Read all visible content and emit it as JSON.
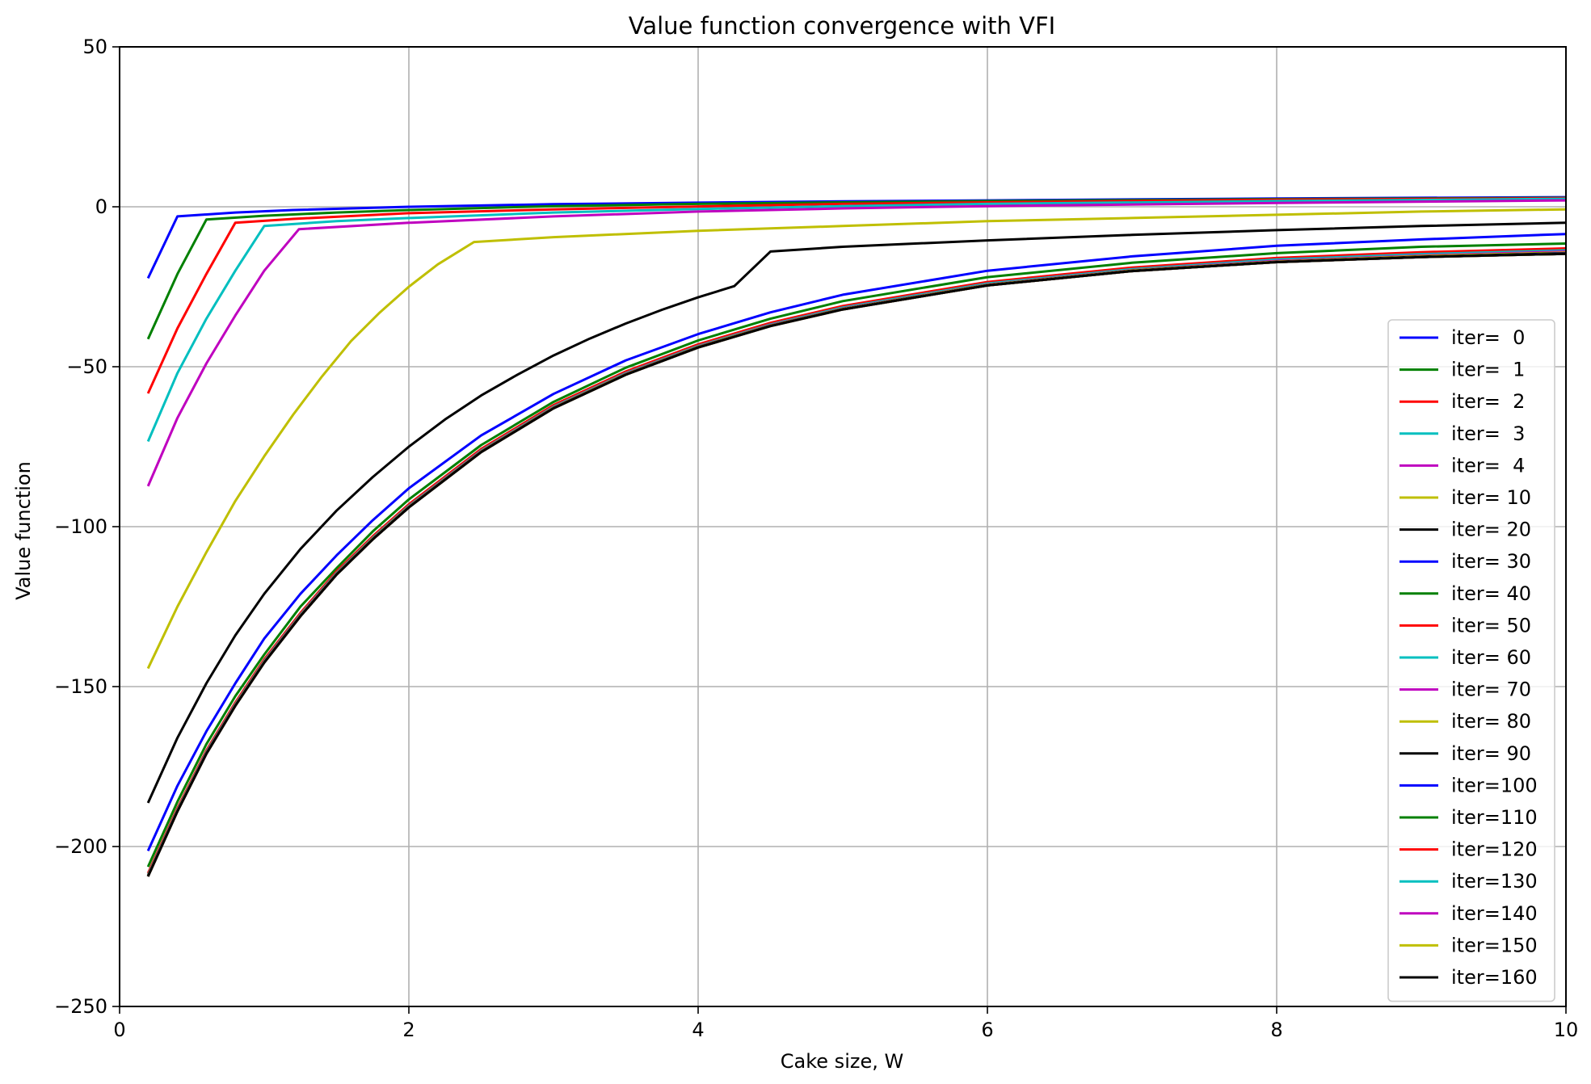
{
  "chart_data": {
    "type": "line",
    "title": "Value function convergence with VFI",
    "xlabel": "Cake size, W",
    "ylabel": "Value function",
    "xlim": [
      0,
      10
    ],
    "ylim": [
      -250,
      50
    ],
    "x_ticks": [
      0,
      2,
      4,
      6,
      8,
      10
    ],
    "x_tick_labels": [
      "0",
      "2",
      "4",
      "6",
      "8",
      "10"
    ],
    "y_ticks": [
      50,
      0,
      -50,
      -100,
      -150,
      -200,
      -250
    ],
    "y_tick_labels": [
      "50",
      "0",
      "−50",
      "−100",
      "−150",
      "−200",
      "−250"
    ],
    "grid": true,
    "legend_position": "lower-right",
    "series": [
      {
        "name": "iter=  0",
        "color": "#0000ff",
        "x": [
          0.2,
          0.4,
          0.8,
          1.2,
          2,
          3,
          4,
          5,
          6,
          8,
          10
        ],
        "y": [
          -22,
          -3,
          -1.8,
          -1.0,
          0,
          0.8,
          1.3,
          1.7,
          2.0,
          2.6,
          3.0
        ]
      },
      {
        "name": "iter=  1",
        "color": "#008000",
        "x": [
          0.2,
          0.4,
          0.6,
          1.0,
          1.5,
          2,
          3,
          4,
          5,
          6,
          8,
          10
        ],
        "y": [
          -41,
          -21,
          -4,
          -2.8,
          -1.8,
          -1.0,
          0.2,
          0.9,
          1.4,
          1.8,
          2.4,
          2.8
        ]
      },
      {
        "name": "iter=  2",
        "color": "#ff0000",
        "x": [
          0.2,
          0.4,
          0.6,
          0.8,
          1.2,
          2,
          3,
          4,
          5,
          6,
          8,
          10
        ],
        "y": [
          -58,
          -38,
          -21,
          -5,
          -3.8,
          -2.0,
          -0.8,
          0.1,
          0.9,
          1.4,
          2.2,
          2.7
        ]
      },
      {
        "name": "iter=  3",
        "color": "#00bfbf",
        "x": [
          0.2,
          0.4,
          0.6,
          0.8,
          1.0,
          1.5,
          2,
          3,
          4,
          5,
          6,
          8,
          10
        ],
        "y": [
          -73,
          -52,
          -35,
          -20,
          -6,
          -4.5,
          -3.5,
          -1.8,
          -0.7,
          0.2,
          0.9,
          1.8,
          2.5
        ]
      },
      {
        "name": "iter=  4",
        "color": "#bf00bf",
        "x": [
          0.2,
          0.4,
          0.6,
          0.8,
          1.0,
          1.24,
          2,
          3,
          4,
          5,
          6,
          8,
          10
        ],
        "y": [
          -87,
          -66,
          -49,
          -34,
          -20,
          -7,
          -5,
          -3.0,
          -1.5,
          -0.5,
          0.2,
          1.2,
          2.0
        ]
      },
      {
        "name": "iter= 10",
        "color": "#bfbf00",
        "x": [
          0.2,
          0.4,
          0.6,
          0.8,
          1.0,
          1.2,
          1.4,
          1.6,
          1.8,
          2.0,
          2.2,
          2.45,
          3,
          4,
          5,
          6,
          7,
          8,
          9,
          10
        ],
        "y": [
          -144,
          -125,
          -108,
          -92,
          -78,
          -65,
          -53,
          -42,
          -33,
          -25,
          -18,
          -11,
          -9.5,
          -7.5,
          -6,
          -4.5,
          -3.5,
          -2.5,
          -1.5,
          -0.8
        ]
      },
      {
        "name": "iter= 20",
        "color": "#000000",
        "x": [
          0.2,
          0.4,
          0.6,
          0.8,
          1.0,
          1.25,
          1.5,
          1.75,
          2.0,
          2.25,
          2.5,
          2.75,
          3.0,
          3.25,
          3.5,
          3.75,
          4.0,
          4.25,
          4.5,
          5,
          6,
          7,
          8,
          9,
          10
        ],
        "y": [
          -186,
          -166,
          -149,
          -134,
          -121,
          -107,
          -95,
          -84.5,
          -75,
          -66.5,
          -59,
          -52.5,
          -46.5,
          -41.2,
          -36.5,
          -32.2,
          -28.3,
          -24.8,
          -14,
          -12.5,
          -10.5,
          -8.8,
          -7.3,
          -6,
          -5
        ]
      },
      {
        "name": "iter= 30",
        "color": "#0000ff",
        "x": [
          0.2,
          0.4,
          0.6,
          0.8,
          1.0,
          1.25,
          1.5,
          1.75,
          2.0,
          2.5,
          3.0,
          3.5,
          4.0,
          4.5,
          5,
          6,
          7,
          8,
          9,
          10
        ],
        "y": [
          -201,
          -181,
          -164,
          -149,
          -135,
          -121,
          -109,
          -98,
          -88,
          -71.5,
          -58.5,
          -48,
          -39.8,
          -33,
          -27.5,
          -20,
          -15.5,
          -12.2,
          -10.2,
          -8.5
        ]
      },
      {
        "name": "iter= 40",
        "color": "#008000",
        "x": [
          0.2,
          0.4,
          0.6,
          0.8,
          1.0,
          1.25,
          1.5,
          1.75,
          2.0,
          2.5,
          3.0,
          3.5,
          4.0,
          4.5,
          5,
          6,
          7,
          8,
          9,
          10
        ],
        "y": [
          -206,
          -186,
          -168,
          -153,
          -140,
          -125,
          -113,
          -101.5,
          -91.5,
          -74.5,
          -61,
          -50.3,
          -41.8,
          -35,
          -29.5,
          -22,
          -17.5,
          -14.5,
          -12.5,
          -11.5
        ]
      },
      {
        "name": "iter= 50",
        "color": "#ff0000",
        "x": [
          0.2,
          0.4,
          0.6,
          0.8,
          1.0,
          1.25,
          1.5,
          1.75,
          2.0,
          2.5,
          3.0,
          3.5,
          4.0,
          4.5,
          5,
          6,
          7,
          8,
          9,
          10
        ],
        "y": [
          -208,
          -188,
          -170,
          -155,
          -141.5,
          -127,
          -114,
          -103,
          -93,
          -75.7,
          -62,
          -51.5,
          -43,
          -36.3,
          -31,
          -23.5,
          -19,
          -16,
          -14.2,
          -13
        ]
      },
      {
        "name": "iter= 60",
        "color": "#00bfbf",
        "x": [
          0.2,
          0.4,
          0.6,
          0.8,
          1.0,
          1.25,
          1.5,
          1.75,
          2.0,
          2.5,
          3.0,
          3.5,
          4.0,
          4.5,
          5,
          6,
          7,
          8,
          9,
          10
        ],
        "y": [
          -208.5,
          -188.5,
          -170.5,
          -155.5,
          -142,
          -127.5,
          -114.5,
          -103.5,
          -93.5,
          -76.2,
          -62.5,
          -52,
          -43.5,
          -36.8,
          -31.5,
          -24,
          -19.5,
          -16.5,
          -14.8,
          -13.6
        ]
      },
      {
        "name": "iter= 70",
        "color": "#bf00bf",
        "x": [
          0.2,
          0.4,
          0.6,
          0.8,
          1.0,
          1.25,
          1.5,
          1.75,
          2.0,
          2.5,
          3.0,
          3.5,
          4.0,
          4.5,
          5,
          6,
          7,
          8,
          9,
          10
        ],
        "y": [
          -208.7,
          -188.7,
          -170.7,
          -155.7,
          -142.2,
          -127.7,
          -114.7,
          -103.7,
          -93.7,
          -76.4,
          -62.7,
          -52.2,
          -43.7,
          -37,
          -31.8,
          -24.3,
          -19.8,
          -16.9,
          -15.2,
          -14
        ]
      },
      {
        "name": "iter= 80",
        "color": "#bfbf00",
        "x": [
          0.2,
          0.4,
          0.6,
          0.8,
          1.0,
          1.25,
          1.5,
          1.75,
          2.0,
          2.5,
          3.0,
          3.5,
          4.0,
          4.5,
          5,
          6,
          7,
          8,
          9,
          10
        ],
        "y": [
          -208.8,
          -188.8,
          -170.8,
          -155.8,
          -142.3,
          -127.8,
          -114.8,
          -103.8,
          -93.8,
          -76.5,
          -62.8,
          -52.3,
          -43.8,
          -37.1,
          -31.9,
          -24.4,
          -19.9,
          -17.1,
          -15.4,
          -14.3
        ]
      },
      {
        "name": "iter= 90",
        "color": "#000000",
        "x": [
          0.2,
          0.4,
          0.6,
          0.8,
          1.0,
          1.25,
          1.5,
          1.75,
          2.0,
          2.5,
          3.0,
          3.5,
          4.0,
          4.5,
          5,
          6,
          7,
          8,
          9,
          10
        ],
        "y": [
          -208.9,
          -188.9,
          -170.9,
          -155.9,
          -142.4,
          -127.9,
          -114.9,
          -103.9,
          -93.9,
          -76.6,
          -62.9,
          -52.4,
          -43.9,
          -37.2,
          -32,
          -24.5,
          -20,
          -17.2,
          -15.6,
          -14.5
        ]
      },
      {
        "name": "iter=100",
        "color": "#0000ff",
        "x": [
          0.2,
          0.4,
          0.6,
          0.8,
          1.0,
          1.25,
          1.5,
          1.75,
          2.0,
          2.5,
          3.0,
          3.5,
          4.0,
          4.5,
          5,
          6,
          7,
          8,
          9,
          10
        ],
        "y": [
          -209,
          -189,
          -171,
          -156,
          -142.5,
          -128,
          -115,
          -104,
          -94,
          -76.7,
          -63,
          -52.5,
          -44,
          -37.3,
          -32.1,
          -24.6,
          -20.1,
          -17.3,
          -15.7,
          -14.6
        ]
      },
      {
        "name": "iter=110",
        "color": "#008000",
        "x": [
          0.2,
          0.4,
          0.6,
          0.8,
          1.0,
          1.25,
          1.5,
          1.75,
          2.0,
          2.5,
          3.0,
          3.5,
          4.0,
          4.5,
          5,
          6,
          7,
          8,
          9,
          10
        ],
        "y": [
          -209,
          -189,
          -171,
          -156,
          -142.5,
          -128,
          -115,
          -104,
          -94,
          -76.7,
          -63,
          -52.5,
          -44,
          -37.3,
          -32.1,
          -24.6,
          -20.1,
          -17.3,
          -15.7,
          -14.7
        ]
      },
      {
        "name": "iter=120",
        "color": "#ff0000",
        "x": [
          0.2,
          0.4,
          0.6,
          0.8,
          1.0,
          1.25,
          1.5,
          1.75,
          2.0,
          2.5,
          3.0,
          3.5,
          4.0,
          4.5,
          5,
          6,
          7,
          8,
          9,
          10
        ],
        "y": [
          -209,
          -189,
          -171,
          -156,
          -142.5,
          -128,
          -115,
          -104,
          -94,
          -76.7,
          -63,
          -52.5,
          -44,
          -37.3,
          -32.1,
          -24.6,
          -20.1,
          -17.3,
          -15.7,
          -14.7
        ]
      },
      {
        "name": "iter=130",
        "color": "#00bfbf",
        "x": [
          0.2,
          0.4,
          0.6,
          0.8,
          1.0,
          1.25,
          1.5,
          1.75,
          2.0,
          2.5,
          3.0,
          3.5,
          4.0,
          4.5,
          5,
          6,
          7,
          8,
          9,
          10
        ],
        "y": [
          -209,
          -189,
          -171,
          -156,
          -142.5,
          -128,
          -115,
          -104,
          -94,
          -76.7,
          -63,
          -52.5,
          -44,
          -37.3,
          -32.1,
          -24.6,
          -20.1,
          -17.3,
          -15.7,
          -14.7
        ]
      },
      {
        "name": "iter=140",
        "color": "#bf00bf",
        "x": [
          0.2,
          0.4,
          0.6,
          0.8,
          1.0,
          1.25,
          1.5,
          1.75,
          2.0,
          2.5,
          3.0,
          3.5,
          4.0,
          4.5,
          5,
          6,
          7,
          8,
          9,
          10
        ],
        "y": [
          -209,
          -189,
          -171,
          -156,
          -142.5,
          -128,
          -115,
          -104,
          -94,
          -76.7,
          -63,
          -52.5,
          -44,
          -37.3,
          -32.1,
          -24.6,
          -20.1,
          -17.3,
          -15.7,
          -14.7
        ]
      },
      {
        "name": "iter=150",
        "color": "#bfbf00",
        "x": [
          0.2,
          0.4,
          0.6,
          0.8,
          1.0,
          1.25,
          1.5,
          1.75,
          2.0,
          2.5,
          3.0,
          3.5,
          4.0,
          4.5,
          5,
          6,
          7,
          8,
          9,
          10
        ],
        "y": [
          -209,
          -189,
          -171,
          -156,
          -142.5,
          -128,
          -115,
          -104,
          -94,
          -76.7,
          -63,
          -52.5,
          -44,
          -37.3,
          -32.1,
          -24.6,
          -20.1,
          -17.3,
          -15.7,
          -14.7
        ]
      },
      {
        "name": "iter=160",
        "color": "#000000",
        "x": [
          0.2,
          0.4,
          0.6,
          0.8,
          1.0,
          1.25,
          1.5,
          1.75,
          2.0,
          2.5,
          3.0,
          3.5,
          4.0,
          4.5,
          5,
          6,
          7,
          8,
          9,
          10
        ],
        "y": [
          -209,
          -189,
          -171,
          -156,
          -142.5,
          -128,
          -115,
          -104,
          -94,
          -76.7,
          -63,
          -52.5,
          -44,
          -37.3,
          -32.1,
          -24.6,
          -20.1,
          -17.3,
          -15.7,
          -14.7
        ]
      }
    ]
  }
}
